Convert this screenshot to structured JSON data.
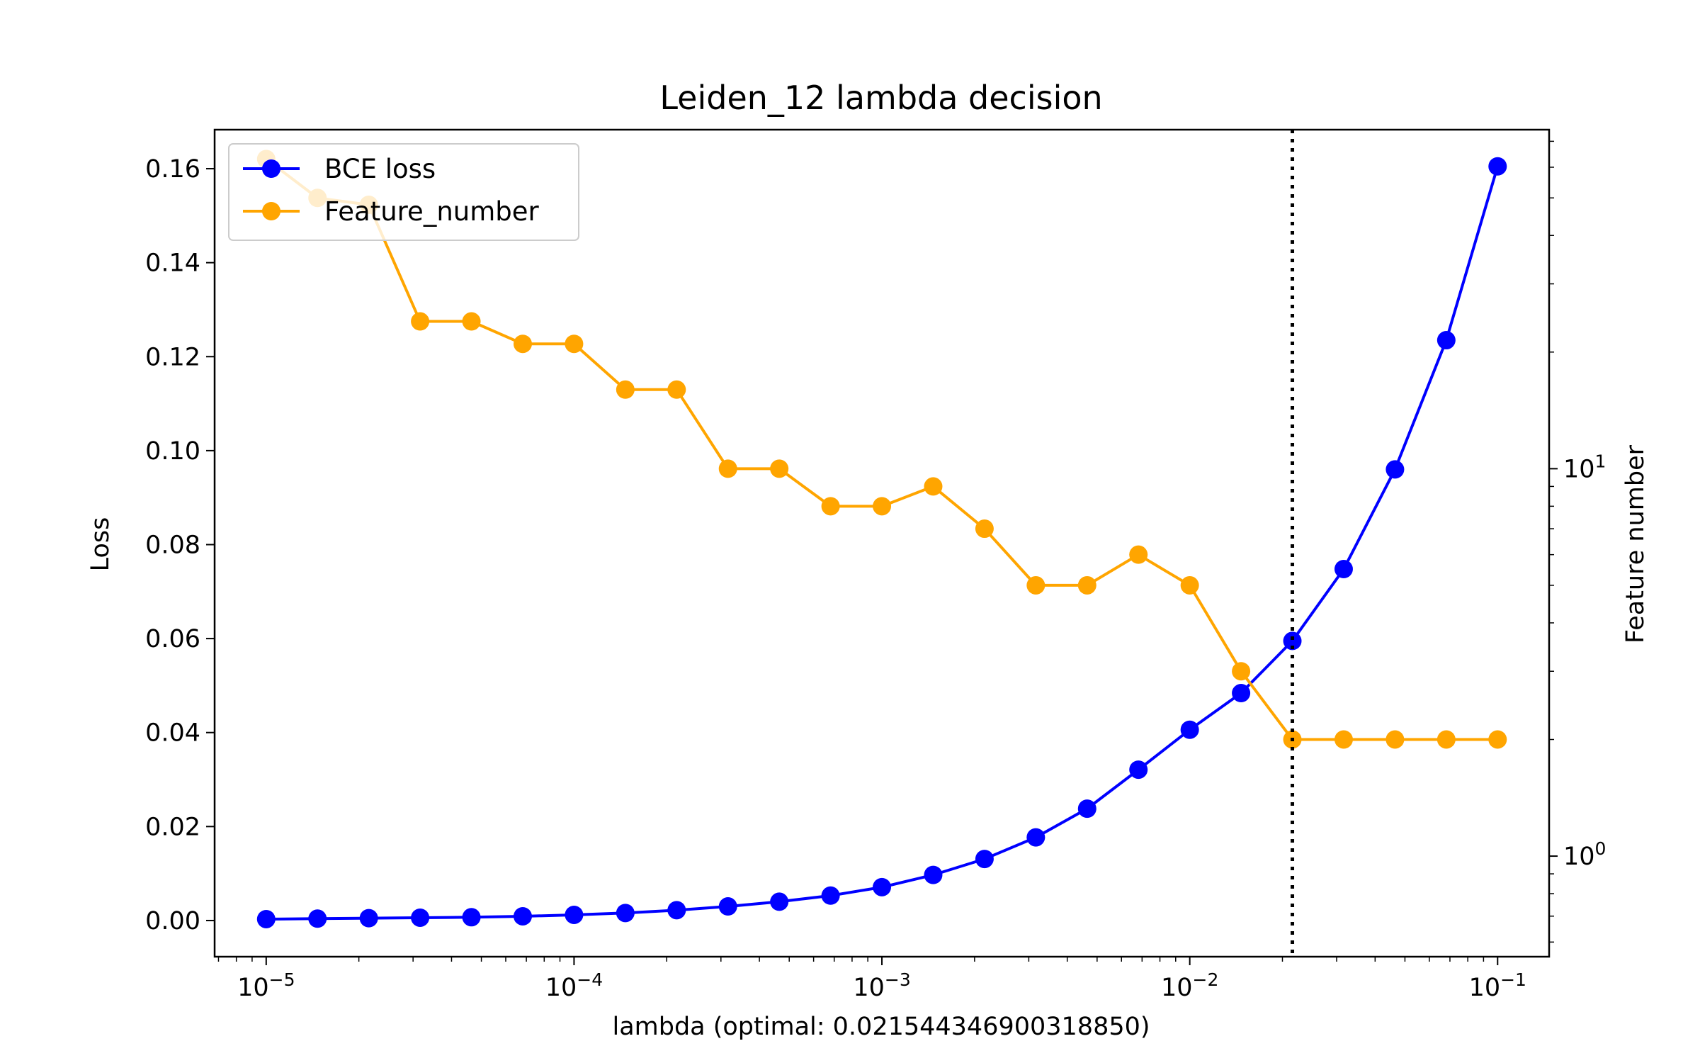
{
  "chart_data": {
    "type": "line",
    "title": "Leiden_12 lambda decision",
    "xlabel": "lambda (optimal: 0.021544346900318850)",
    "ylabel": "Loss",
    "y2label": "Feature number",
    "x_scale": "log",
    "y2_scale": "log",
    "xlim": [
      6.8e-06,
      0.147
    ],
    "ylim": [
      -0.0077,
      0.1683
    ],
    "y2lim": [
      0.55,
      75
    ],
    "x_ticks": [
      {
        "value": 1e-05,
        "base": "10",
        "exp": "−5"
      },
      {
        "value": 0.0001,
        "base": "10",
        "exp": "−4"
      },
      {
        "value": 0.001,
        "base": "10",
        "exp": "−3"
      },
      {
        "value": 0.01,
        "base": "10",
        "exp": "−2"
      },
      {
        "value": 0.1,
        "base": "10",
        "exp": "−1"
      }
    ],
    "y_ticks": [
      {
        "value": 0.0,
        "label": "0.00"
      },
      {
        "value": 0.02,
        "label": "0.02"
      },
      {
        "value": 0.04,
        "label": "0.04"
      },
      {
        "value": 0.06,
        "label": "0.06"
      },
      {
        "value": 0.08,
        "label": "0.08"
      },
      {
        "value": 0.1,
        "label": "0.10"
      },
      {
        "value": 0.12,
        "label": "0.12"
      },
      {
        "value": 0.14,
        "label": "0.14"
      },
      {
        "value": 0.16,
        "label": "0.16"
      }
    ],
    "y2_ticks": [
      {
        "value": 1,
        "base": "10",
        "exp": "0"
      },
      {
        "value": 10,
        "base": "10",
        "exp": "1"
      }
    ],
    "x": [
      1e-05,
      1.4678e-05,
      2.15443e-05,
      3.16228e-05,
      4.64159e-05,
      6.81292e-05,
      0.0001,
      0.00014678,
      0.000215443,
      0.000316228,
      0.000464159,
      0.000681292,
      0.001,
      0.0014678,
      0.00215443,
      0.00316228,
      0.00464159,
      0.00681292,
      0.01,
      0.014678,
      0.0215443,
      0.0316228,
      0.0464159,
      0.0681292,
      0.1
    ],
    "series": [
      {
        "name": "BCE loss",
        "axis": "left",
        "color": "#0000ff",
        "values": [
          0.0003,
          0.0004,
          0.0005,
          0.0006,
          0.0007,
          0.0009,
          0.0012,
          0.0016,
          0.0022,
          0.003,
          0.004,
          0.0053,
          0.0071,
          0.0097,
          0.0131,
          0.0177,
          0.0238,
          0.0321,
          0.0406,
          0.0484,
          0.0595,
          0.0748,
          0.096,
          0.1235,
          0.1605
        ]
      },
      {
        "name": "Feature_number",
        "axis": "right",
        "color": "#ffa500",
        "values": [
          63,
          50,
          48,
          24,
          24,
          21,
          21,
          16,
          16,
          10,
          10,
          8,
          8,
          9,
          7,
          5,
          5,
          6,
          5,
          3,
          2,
          2,
          2,
          2,
          2
        ]
      }
    ],
    "optimal_lambda": 0.02154434690031885,
    "legend": {
      "position": "top-left"
    },
    "grid": false
  }
}
